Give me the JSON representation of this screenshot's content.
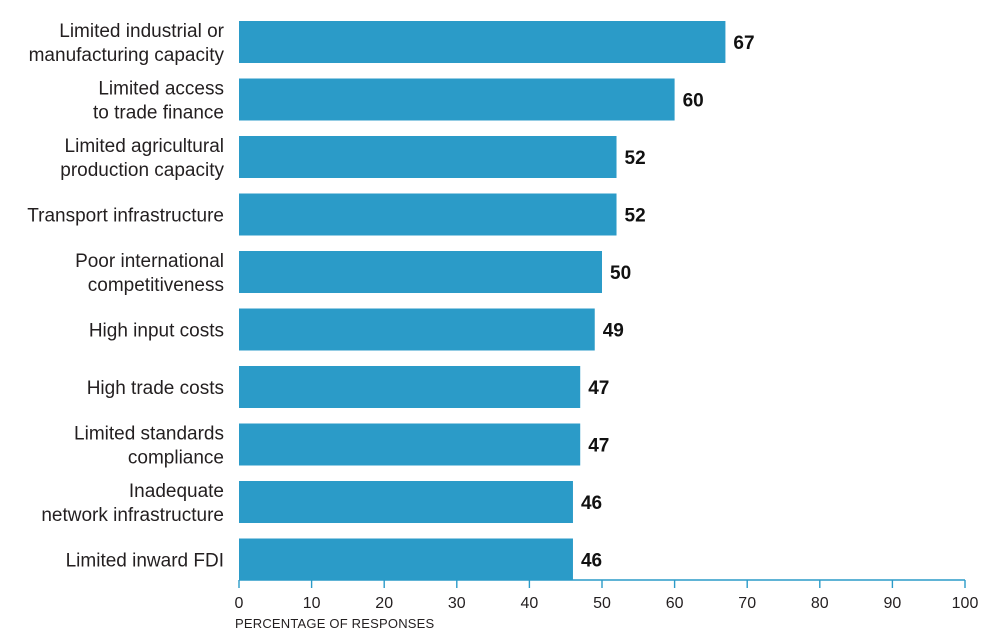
{
  "colors": {
    "bar": "#2b9bc8",
    "axis": "#2b9bc8",
    "text": "#231f20"
  },
  "chart_data": {
    "type": "bar",
    "orientation": "horizontal",
    "categories": [
      [
        "Limited industrial or",
        "manufacturing capacity"
      ],
      [
        "Limited access",
        "to trade finance"
      ],
      [
        "Limited agricultural",
        "production capacity"
      ],
      [
        "Transport infrastructure"
      ],
      [
        "Poor international",
        "competitiveness"
      ],
      [
        "High input costs"
      ],
      [
        "High trade costs"
      ],
      [
        "Limited standards",
        "compliance"
      ],
      [
        "Inadequate",
        "network infrastructure"
      ],
      [
        "Limited inward FDI"
      ]
    ],
    "values": [
      67,
      60,
      52,
      52,
      50,
      49,
      47,
      47,
      46,
      46
    ],
    "xlabel": "PERCENTAGE OF RESPONSES",
    "xlim": [
      0,
      100
    ],
    "xticks": [
      0,
      10,
      20,
      30,
      40,
      50,
      60,
      70,
      80,
      90,
      100
    ],
    "grid": false,
    "data_labels": true
  }
}
